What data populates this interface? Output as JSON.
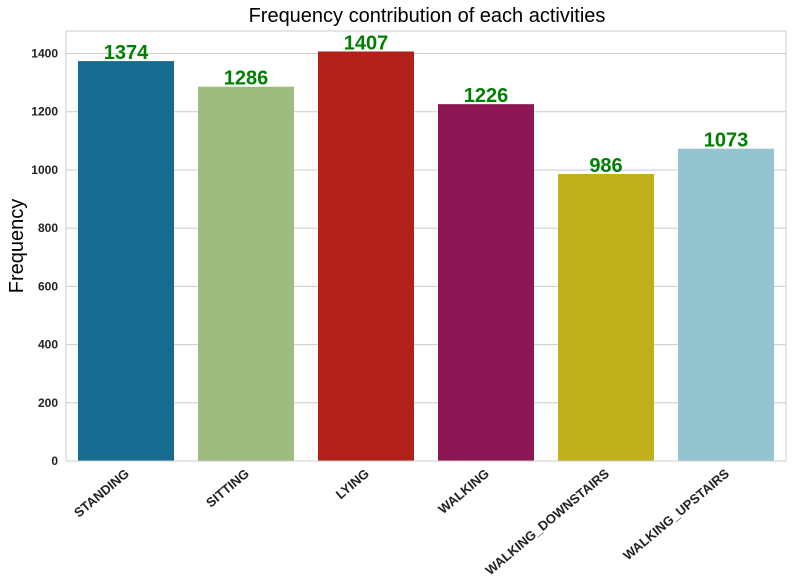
{
  "chart_data": {
    "type": "bar",
    "title": "Frequency contribution of each activities",
    "xlabel": "",
    "ylabel": "Frequency",
    "categories": [
      "STANDING",
      "SITTING",
      "LYING",
      "WALKING",
      "WALKING_DOWNSTAIRS",
      "WALKING_UPSTAIRS"
    ],
    "values": [
      1374,
      1286,
      1407,
      1226,
      986,
      1073
    ],
    "data_labels": [
      "1374",
      "1286",
      "1407",
      "1226",
      "986",
      "1073"
    ],
    "colors": [
      "#176b91",
      "#a0bb7f",
      "#b2201b",
      "#8d1654",
      "#bfb01c",
      "#93c4d0"
    ],
    "data_label_color": "#008000",
    "ylim": [
      0,
      1477.35
    ],
    "yticks": [
      0,
      200,
      400,
      600,
      800,
      1000,
      1200,
      1400
    ],
    "ytick_labels": [
      "0",
      "200",
      "400",
      "600",
      "800",
      "1000",
      "1200",
      "1400"
    ],
    "grid": true,
    "legend": "none"
  }
}
